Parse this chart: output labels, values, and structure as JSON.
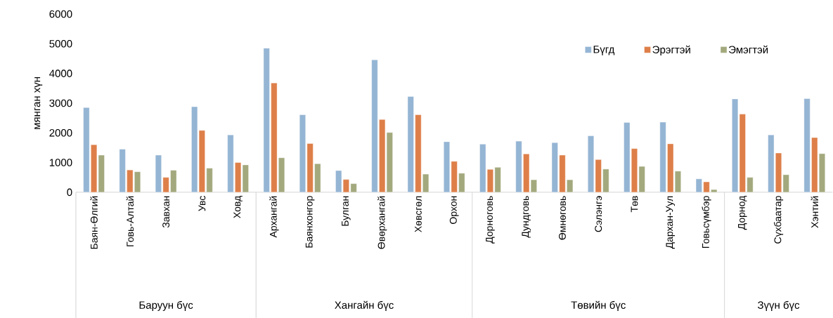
{
  "chart_data": {
    "type": "bar",
    "ylabel": "мянган хүн",
    "categories": [
      "Баян-Өлгий",
      "Говь-Алтай",
      "Завхан",
      "Увс",
      "Ховд",
      "Архангай",
      "Баянхонгор",
      "Булган",
      "Өвөрхангай",
      "Хөвсгөл",
      "Орхон",
      "Дорноговь",
      "Дундговь",
      "Өмнөговь",
      "Сэлэнгэ",
      "Төв",
      "Дархан-Уул",
      "Говьсүмбэр",
      "Дорнод",
      "Сүхбаатар",
      "Хэнтий"
    ],
    "series": [
      {
        "name": "Бүгд",
        "color": "#95b5d4",
        "values": [
          2850,
          1450,
          1250,
          2880,
          1930,
          4850,
          2610,
          730,
          4460,
          3220,
          1700,
          1620,
          1720,
          1670,
          1900,
          2350,
          2360,
          450,
          3140,
          1930,
          3150
        ]
      },
      {
        "name": "Эрэгтэй",
        "color": "#de7f49",
        "values": [
          1600,
          750,
          500,
          2080,
          1000,
          3680,
          1640,
          430,
          2450,
          2610,
          1040,
          770,
          1290,
          1250,
          1100,
          1470,
          1630,
          350,
          2630,
          1320,
          1840
        ]
      },
      {
        "name": "Эмэгтэй",
        "color": "#a3a97d",
        "values": [
          1250,
          690,
          740,
          810,
          920,
          1160,
          960,
          290,
          2010,
          610,
          640,
          840,
          420,
          420,
          780,
          870,
          710,
          90,
          500,
          590,
          1300
        ]
      }
    ],
    "ylim": [
      0,
      6000
    ],
    "yticks": [
      0,
      1000,
      2000,
      3000,
      4000,
      5000,
      6000
    ],
    "legend": "top right",
    "grid": false,
    "annotations": [
      "Баруун бүс",
      "Хангайн бүс",
      "Төвийн бүс",
      "Зүүн бүс"
    ]
  }
}
